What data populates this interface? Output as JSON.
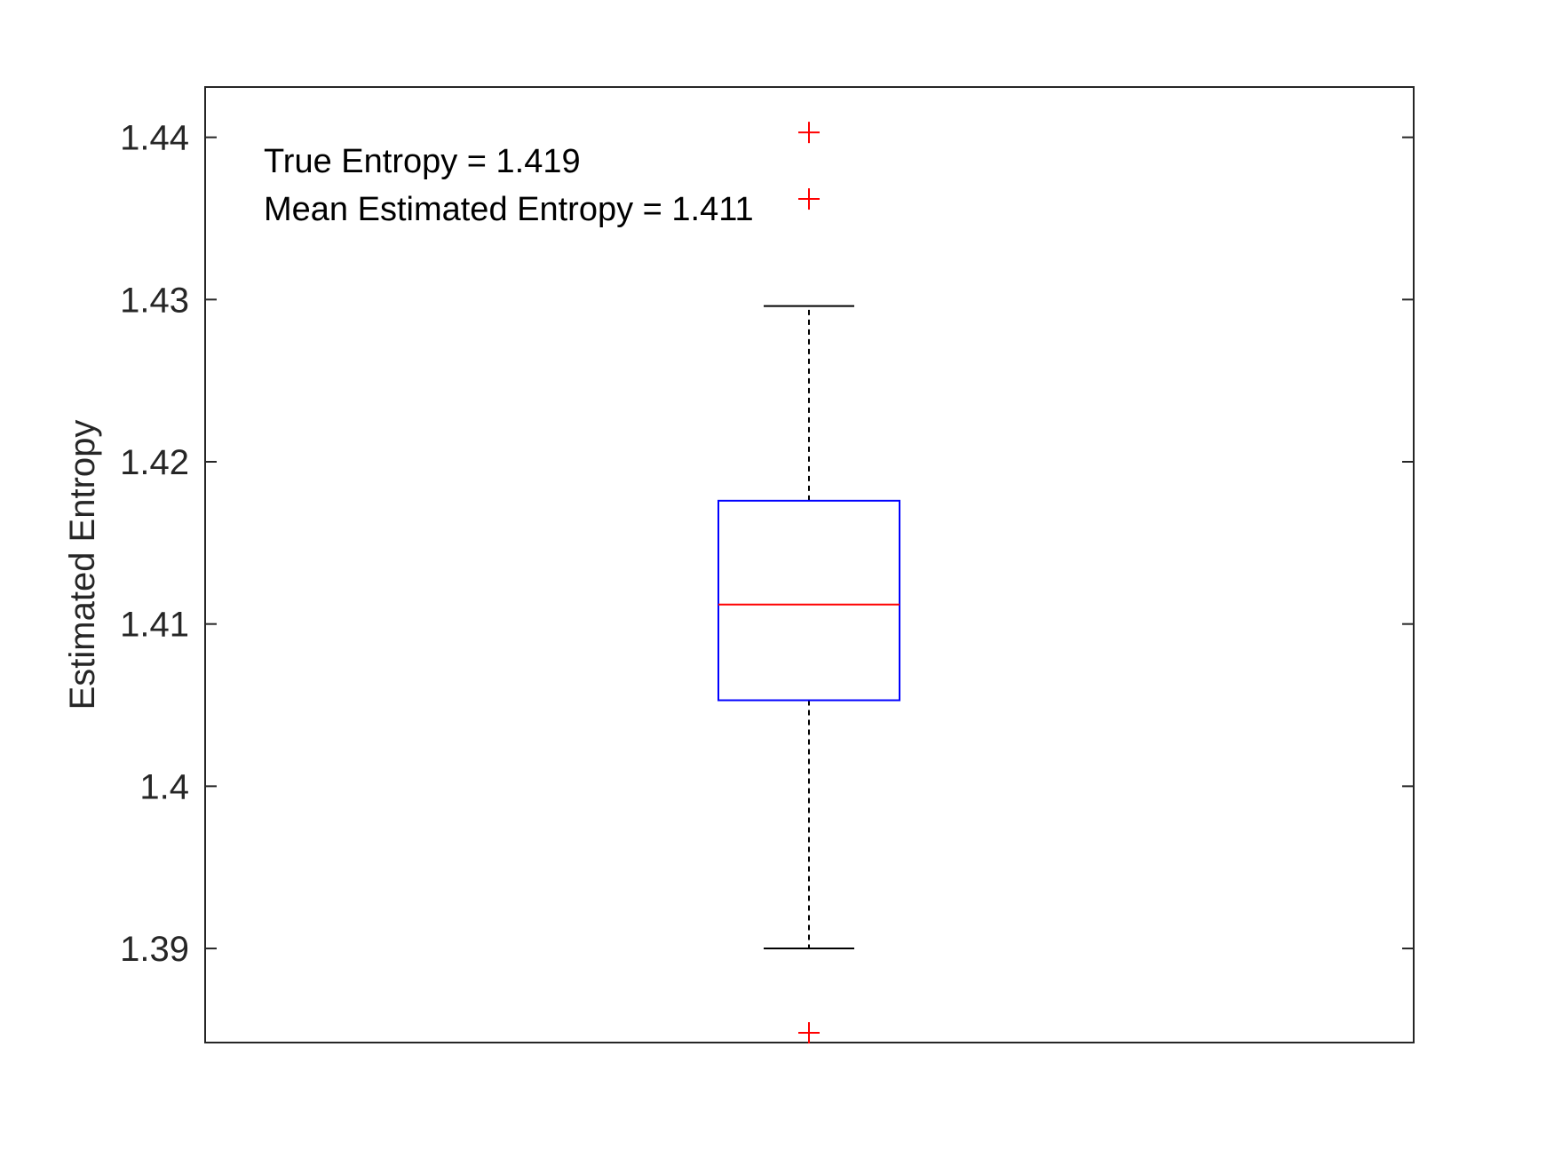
{
  "chart_data": {
    "type": "box",
    "ylabel": "Estimated Entropy",
    "ylim": [
      1.3842,
      1.4431
    ],
    "yticks": [
      "1.39",
      "1.4",
      "1.41",
      "1.42",
      "1.43",
      "1.44"
    ],
    "ytick_values": [
      1.39,
      1.4,
      1.41,
      1.42,
      1.43,
      1.44
    ],
    "box": {
      "whisker_low": 1.39,
      "q1": 1.4053,
      "median": 1.4112,
      "q3": 1.4176,
      "whisker_high": 1.4296
    },
    "outliers": [
      1.4403,
      1.4362,
      1.3848
    ],
    "annotations": [
      "True Entropy = 1.419",
      "Mean Estimated Entropy = 1.411"
    ],
    "colors": {
      "box": "#0000ff",
      "median": "#ff0000",
      "outlier": "#ff0000",
      "whisker": "#000000",
      "axis": "#262626"
    },
    "grid": false
  }
}
